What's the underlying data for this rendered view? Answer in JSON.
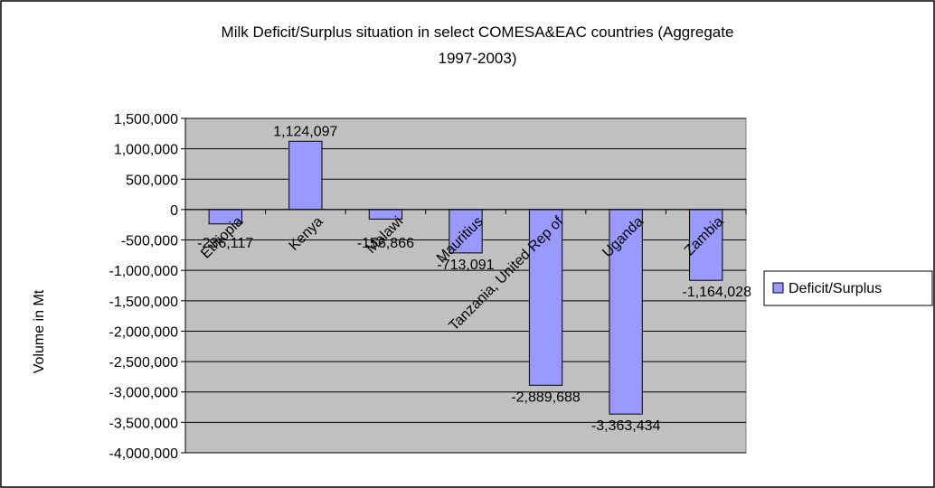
{
  "chart_data": {
    "type": "bar",
    "title": "Milk Deficit/Surplus situation in select COMESA&EAC countries (Aggregate 1997-2003)",
    "title_lines": [
      "Milk Deficit/Surplus situation in select COMESA&EAC countries (Aggregate",
      "1997-2003)"
    ],
    "xlabel": "",
    "ylabel": "Volume in Mt",
    "categories": [
      "Ethiopia",
      "Kenya",
      "Malawi",
      "Mauritius",
      "Tanzania, United Rep of",
      "Uganda",
      "Zambia"
    ],
    "series": [
      {
        "name": "Deficit/Surplus",
        "values": [
          -236117,
          1124097,
          -156866,
          -713091,
          -2889688,
          -3363434,
          -1164028
        ],
        "labels": [
          "-236,117",
          "1,124,097",
          "-156,866",
          "-713,091",
          "-2,889,688",
          "-3,363,434",
          "-1,164,028"
        ]
      }
    ],
    "ylim": [
      -4000000,
      1500000
    ],
    "yticks": [
      1500000,
      1000000,
      500000,
      0,
      -500000,
      -1000000,
      -1500000,
      -2000000,
      -2500000,
      -3000000,
      -3500000,
      -4000000
    ],
    "ytick_labels": [
      "1,500,000",
      "1,000,000",
      "500,000",
      "0",
      "-500,000",
      "-1,000,000",
      "-1,500,000",
      "-2,000,000",
      "-2,500,000",
      "-3,000,000",
      "-3,500,000",
      "-4,000,000"
    ],
    "grid": true,
    "legend_position": "right",
    "colors": {
      "bar_fill": "#9999FF",
      "bar_stroke": "#000000",
      "plot_background": "#C0C0C0",
      "chart_background": "#FFFFFF",
      "border": "#000000"
    }
  }
}
